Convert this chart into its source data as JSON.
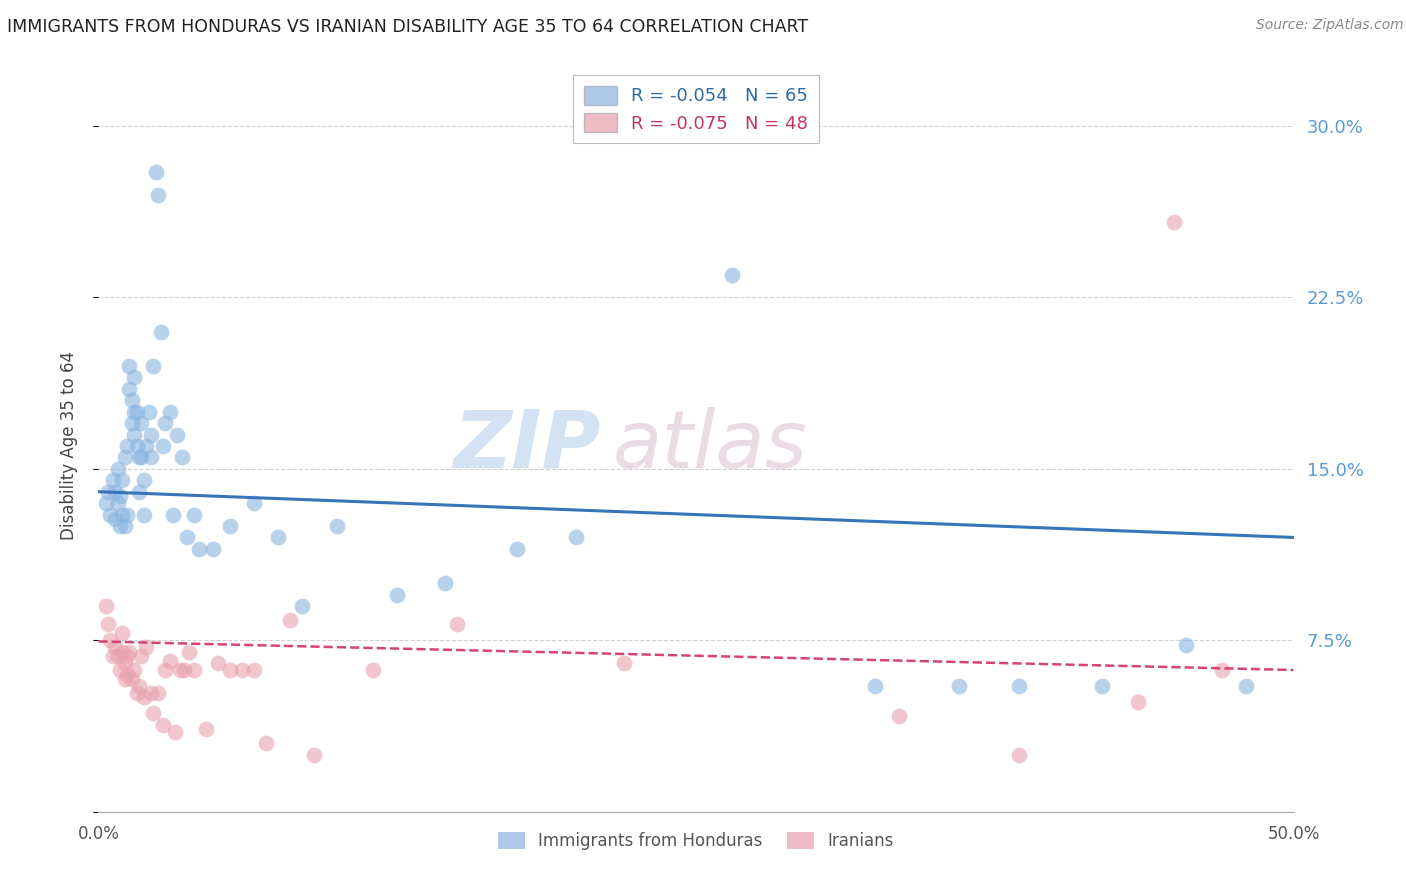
{
  "title": "IMMIGRANTS FROM HONDURAS VS IRANIAN DISABILITY AGE 35 TO 64 CORRELATION CHART",
  "source": "Source: ZipAtlas.com",
  "ylabel": "Disability Age 35 to 64",
  "right_yticks": [
    0.0,
    0.075,
    0.15,
    0.225,
    0.3
  ],
  "right_yticklabels": [
    "",
    "7.5%",
    "15.0%",
    "22.5%",
    "30.0%"
  ],
  "xlim": [
    0.0,
    0.5
  ],
  "ylim": [
    0.0,
    0.32
  ],
  "legend1_r": "R = -0.054",
  "legend1_n": "N = 65",
  "legend2_r": "R = -0.075",
  "legend2_n": "N = 48",
  "blue_color": "#8ab4e0",
  "pink_color": "#e8a0b0",
  "line_blue": "#3874b8",
  "line_pink": "#d44477",
  "watermark_zip": "ZIP",
  "watermark_atlas": "atlas",
  "blue_x": [
    0.003,
    0.004,
    0.005,
    0.006,
    0.007,
    0.007,
    0.008,
    0.008,
    0.009,
    0.009,
    0.01,
    0.01,
    0.011,
    0.011,
    0.012,
    0.012,
    0.013,
    0.013,
    0.014,
    0.014,
    0.015,
    0.015,
    0.015,
    0.016,
    0.016,
    0.017,
    0.017,
    0.018,
    0.018,
    0.019,
    0.019,
    0.02,
    0.021,
    0.022,
    0.022,
    0.023,
    0.024,
    0.025,
    0.026,
    0.027,
    0.028,
    0.03,
    0.031,
    0.033,
    0.035,
    0.037,
    0.04,
    0.042,
    0.048,
    0.055,
    0.065,
    0.075,
    0.085,
    0.1,
    0.125,
    0.145,
    0.175,
    0.2,
    0.265,
    0.325,
    0.36,
    0.385,
    0.42,
    0.455,
    0.48
  ],
  "blue_y": [
    0.135,
    0.14,
    0.13,
    0.145,
    0.128,
    0.14,
    0.135,
    0.15,
    0.125,
    0.138,
    0.13,
    0.145,
    0.125,
    0.155,
    0.13,
    0.16,
    0.185,
    0.195,
    0.17,
    0.18,
    0.165,
    0.175,
    0.19,
    0.175,
    0.16,
    0.14,
    0.155,
    0.155,
    0.17,
    0.13,
    0.145,
    0.16,
    0.175,
    0.155,
    0.165,
    0.195,
    0.28,
    0.27,
    0.21,
    0.16,
    0.17,
    0.175,
    0.13,
    0.165,
    0.155,
    0.12,
    0.13,
    0.115,
    0.115,
    0.125,
    0.135,
    0.12,
    0.09,
    0.125,
    0.095,
    0.1,
    0.115,
    0.12,
    0.235,
    0.055,
    0.055,
    0.055,
    0.055,
    0.073,
    0.055
  ],
  "pink_x": [
    0.003,
    0.004,
    0.005,
    0.006,
    0.007,
    0.008,
    0.009,
    0.01,
    0.01,
    0.011,
    0.011,
    0.012,
    0.012,
    0.013,
    0.014,
    0.015,
    0.016,
    0.017,
    0.018,
    0.019,
    0.02,
    0.022,
    0.023,
    0.025,
    0.027,
    0.028,
    0.03,
    0.032,
    0.034,
    0.036,
    0.038,
    0.04,
    0.045,
    0.05,
    0.055,
    0.06,
    0.065,
    0.07,
    0.08,
    0.09,
    0.115,
    0.15,
    0.22,
    0.335,
    0.385,
    0.435,
    0.45,
    0.47
  ],
  "pink_y": [
    0.09,
    0.082,
    0.075,
    0.068,
    0.072,
    0.068,
    0.062,
    0.07,
    0.078,
    0.065,
    0.058,
    0.068,
    0.06,
    0.07,
    0.058,
    0.062,
    0.052,
    0.055,
    0.068,
    0.05,
    0.072,
    0.052,
    0.043,
    0.052,
    0.038,
    0.062,
    0.066,
    0.035,
    0.062,
    0.062,
    0.07,
    0.062,
    0.036,
    0.065,
    0.062,
    0.062,
    0.062,
    0.03,
    0.084,
    0.025,
    0.062,
    0.082,
    0.065,
    0.042,
    0.025,
    0.048,
    0.258,
    0.062
  ],
  "blue_trend_x": [
    0.0,
    0.5
  ],
  "blue_trend_y": [
    0.14,
    0.12
  ],
  "pink_trend_x": [
    0.0,
    0.5
  ],
  "pink_trend_y": [
    0.0745,
    0.062
  ]
}
